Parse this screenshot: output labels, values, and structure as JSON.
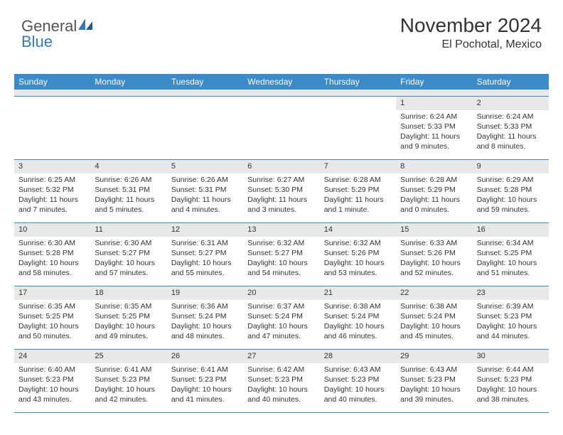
{
  "logo": {
    "text1": "General",
    "text2": "Blue"
  },
  "header": {
    "month": "November 2024",
    "location": "El Pochotal, Mexico"
  },
  "weekdays": [
    "Sunday",
    "Monday",
    "Tuesday",
    "Wednesday",
    "Thursday",
    "Friday",
    "Saturday"
  ],
  "colors": {
    "header_bar": "#3b8bc9",
    "daynum_bg": "#e8e8e8",
    "border": "#3b8bc9",
    "logo_blue": "#2e7bc0"
  },
  "weeks": [
    [
      {
        "n": "",
        "sr": "",
        "ss": "",
        "dl": ""
      },
      {
        "n": "",
        "sr": "",
        "ss": "",
        "dl": ""
      },
      {
        "n": "",
        "sr": "",
        "ss": "",
        "dl": ""
      },
      {
        "n": "",
        "sr": "",
        "ss": "",
        "dl": ""
      },
      {
        "n": "",
        "sr": "",
        "ss": "",
        "dl": ""
      },
      {
        "n": "1",
        "sr": "Sunrise: 6:24 AM",
        "ss": "Sunset: 5:33 PM",
        "dl": "Daylight: 11 hours and 9 minutes."
      },
      {
        "n": "2",
        "sr": "Sunrise: 6:24 AM",
        "ss": "Sunset: 5:33 PM",
        "dl": "Daylight: 11 hours and 8 minutes."
      }
    ],
    [
      {
        "n": "3",
        "sr": "Sunrise: 6:25 AM",
        "ss": "Sunset: 5:32 PM",
        "dl": "Daylight: 11 hours and 7 minutes."
      },
      {
        "n": "4",
        "sr": "Sunrise: 6:26 AM",
        "ss": "Sunset: 5:31 PM",
        "dl": "Daylight: 11 hours and 5 minutes."
      },
      {
        "n": "5",
        "sr": "Sunrise: 6:26 AM",
        "ss": "Sunset: 5:31 PM",
        "dl": "Daylight: 11 hours and 4 minutes."
      },
      {
        "n": "6",
        "sr": "Sunrise: 6:27 AM",
        "ss": "Sunset: 5:30 PM",
        "dl": "Daylight: 11 hours and 3 minutes."
      },
      {
        "n": "7",
        "sr": "Sunrise: 6:28 AM",
        "ss": "Sunset: 5:29 PM",
        "dl": "Daylight: 11 hours and 1 minute."
      },
      {
        "n": "8",
        "sr": "Sunrise: 6:28 AM",
        "ss": "Sunset: 5:29 PM",
        "dl": "Daylight: 11 hours and 0 minutes."
      },
      {
        "n": "9",
        "sr": "Sunrise: 6:29 AM",
        "ss": "Sunset: 5:28 PM",
        "dl": "Daylight: 10 hours and 59 minutes."
      }
    ],
    [
      {
        "n": "10",
        "sr": "Sunrise: 6:30 AM",
        "ss": "Sunset: 5:28 PM",
        "dl": "Daylight: 10 hours and 58 minutes."
      },
      {
        "n": "11",
        "sr": "Sunrise: 6:30 AM",
        "ss": "Sunset: 5:27 PM",
        "dl": "Daylight: 10 hours and 57 minutes."
      },
      {
        "n": "12",
        "sr": "Sunrise: 6:31 AM",
        "ss": "Sunset: 5:27 PM",
        "dl": "Daylight: 10 hours and 55 minutes."
      },
      {
        "n": "13",
        "sr": "Sunrise: 6:32 AM",
        "ss": "Sunset: 5:27 PM",
        "dl": "Daylight: 10 hours and 54 minutes."
      },
      {
        "n": "14",
        "sr": "Sunrise: 6:32 AM",
        "ss": "Sunset: 5:26 PM",
        "dl": "Daylight: 10 hours and 53 minutes."
      },
      {
        "n": "15",
        "sr": "Sunrise: 6:33 AM",
        "ss": "Sunset: 5:26 PM",
        "dl": "Daylight: 10 hours and 52 minutes."
      },
      {
        "n": "16",
        "sr": "Sunrise: 6:34 AM",
        "ss": "Sunset: 5:25 PM",
        "dl": "Daylight: 10 hours and 51 minutes."
      }
    ],
    [
      {
        "n": "17",
        "sr": "Sunrise: 6:35 AM",
        "ss": "Sunset: 5:25 PM",
        "dl": "Daylight: 10 hours and 50 minutes."
      },
      {
        "n": "18",
        "sr": "Sunrise: 6:35 AM",
        "ss": "Sunset: 5:25 PM",
        "dl": "Daylight: 10 hours and 49 minutes."
      },
      {
        "n": "19",
        "sr": "Sunrise: 6:36 AM",
        "ss": "Sunset: 5:24 PM",
        "dl": "Daylight: 10 hours and 48 minutes."
      },
      {
        "n": "20",
        "sr": "Sunrise: 6:37 AM",
        "ss": "Sunset: 5:24 PM",
        "dl": "Daylight: 10 hours and 47 minutes."
      },
      {
        "n": "21",
        "sr": "Sunrise: 6:38 AM",
        "ss": "Sunset: 5:24 PM",
        "dl": "Daylight: 10 hours and 46 minutes."
      },
      {
        "n": "22",
        "sr": "Sunrise: 6:38 AM",
        "ss": "Sunset: 5:24 PM",
        "dl": "Daylight: 10 hours and 45 minutes."
      },
      {
        "n": "23",
        "sr": "Sunrise: 6:39 AM",
        "ss": "Sunset: 5:23 PM",
        "dl": "Daylight: 10 hours and 44 minutes."
      }
    ],
    [
      {
        "n": "24",
        "sr": "Sunrise: 6:40 AM",
        "ss": "Sunset: 5:23 PM",
        "dl": "Daylight: 10 hours and 43 minutes."
      },
      {
        "n": "25",
        "sr": "Sunrise: 6:41 AM",
        "ss": "Sunset: 5:23 PM",
        "dl": "Daylight: 10 hours and 42 minutes."
      },
      {
        "n": "26",
        "sr": "Sunrise: 6:41 AM",
        "ss": "Sunset: 5:23 PM",
        "dl": "Daylight: 10 hours and 41 minutes."
      },
      {
        "n": "27",
        "sr": "Sunrise: 6:42 AM",
        "ss": "Sunset: 5:23 PM",
        "dl": "Daylight: 10 hours and 40 minutes."
      },
      {
        "n": "28",
        "sr": "Sunrise: 6:43 AM",
        "ss": "Sunset: 5:23 PM",
        "dl": "Daylight: 10 hours and 40 minutes."
      },
      {
        "n": "29",
        "sr": "Sunrise: 6:43 AM",
        "ss": "Sunset: 5:23 PM",
        "dl": "Daylight: 10 hours and 39 minutes."
      },
      {
        "n": "30",
        "sr": "Sunrise: 6:44 AM",
        "ss": "Sunset: 5:23 PM",
        "dl": "Daylight: 10 hours and 38 minutes."
      }
    ]
  ]
}
